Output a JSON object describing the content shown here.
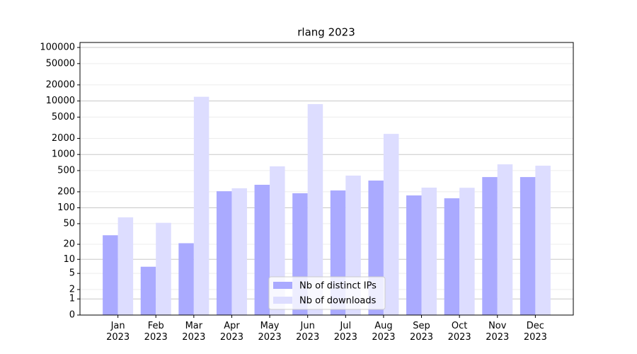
{
  "chart_data": {
    "type": "bar",
    "title": "rlang 2023",
    "categories": [
      "Jan 2023",
      "Feb 2023",
      "Mar 2023",
      "Apr 2023",
      "May 2023",
      "Jun 2023",
      "Jul 2023",
      "Aug 2023",
      "Sep 2023",
      "Oct 2023",
      "Nov 2023",
      "Dec 2023"
    ],
    "series": [
      {
        "name": "Nb of distinct IPs",
        "color": "#aaaaff",
        "values": [
          30,
          7,
          21,
          205,
          271,
          188,
          212,
          325,
          171,
          151,
          378,
          378
        ]
      },
      {
        "name": "Nb of downloads",
        "color": "#ddddff",
        "values": [
          66,
          52,
          12000,
          233,
          600,
          8750,
          403,
          2430,
          240,
          238,
          655,
          617
        ]
      }
    ],
    "yscale": "log1p",
    "ylim": [
      0,
      124000
    ],
    "yticks": [
      0,
      1,
      2,
      5,
      10,
      20,
      50,
      100,
      200,
      500,
      1000,
      2000,
      5000,
      10000,
      20000,
      50000,
      100000
    ],
    "grid": true,
    "legend": "lower center"
  }
}
